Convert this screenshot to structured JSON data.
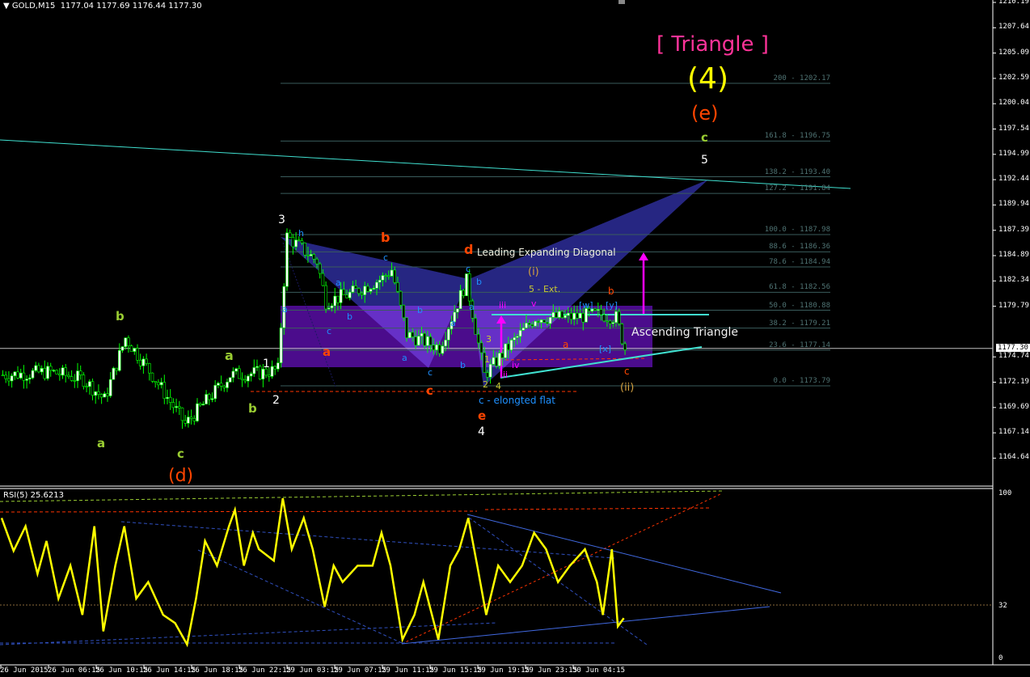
{
  "header": {
    "symbol": "GOLD,M15",
    "ohlc": "1177.04 1177.69 1176.44 1177.30"
  },
  "rsi_header": {
    "label": "RSI(5) 25.6213"
  },
  "colors": {
    "candle": "#00ff00",
    "rsi": "#ffff00",
    "fib": "#3a5c5c",
    "trend": "#40e0d0",
    "rect": "#4b0c8c",
    "harmonic": "#2a2a90",
    "arrow": "#ff00ff"
  },
  "chart_data": [
    {
      "type": "candlestick",
      "title": "GOLD,M15",
      "x_tick_labels": [
        "26 Jun 2015",
        "26 Jun 06:15",
        "26 Jun 10:15",
        "26 Jun 14:15",
        "26 Jun 18:15",
        "26 Jun 22:15",
        "29 Jun 03:15",
        "29 Jun 07:15",
        "29 Jun 11:15",
        "29 Jun 15:15",
        "29 Jun 19:15",
        "29 Jun 23:15",
        "30 Jun 04:15"
      ],
      "y_tick_labels": [
        "1210.19",
        "1207.64",
        "1205.09",
        "1202.59",
        "1200.04",
        "1197.54",
        "1194.99",
        "1192.44",
        "1189.94",
        "1187.39",
        "1184.89",
        "1182.34",
        "1179.79",
        "1174.74",
        "1172.19",
        "1169.69",
        "1167.14",
        "1164.64"
      ],
      "current_price": "1177.30",
      "ylim": [
        1164.64,
        1210.19
      ],
      "close_path": {
        "bars": [
          0,
          16,
          27,
          34,
          41,
          50,
          61,
          76,
          86,
          92,
          95,
          105,
          108,
          116,
          127,
          130,
          135,
          146,
          155,
          161,
          168,
          178,
          189,
          200,
          205,
          208
        ],
        "close": [
          1174.8,
          1175.1,
          1174.4,
          1172.5,
          1178.3,
          1174.8,
          1170.2,
          1174.8,
          1175.0,
          1175.3,
          1187.8,
          1185.5,
          1181.7,
          1182.4,
          1183.9,
          1184.7,
          1178.6,
          1177.4,
          1183.6,
          1174.8,
          1177.1,
          1180.2,
          1180.2,
          1180.5,
          1180.2,
          1177.3
        ]
      },
      "fib_levels": [
        {
          "label": "200 - 1202.17",
          "price": 1202.17
        },
        {
          "label": "161.8 - 1196.75",
          "price": 1196.75
        },
        {
          "label": "138.2 - 1193.40",
          "price": 1193.4
        },
        {
          "label": "127.2 - 1191.84",
          "price": 1191.84
        },
        {
          "label": "100.0 - 1187.98",
          "price": 1187.98
        },
        {
          "label": "88.6 - 1186.36",
          "price": 1186.36
        },
        {
          "label": "78.6 - 1184.94",
          "price": 1184.94
        },
        {
          "label": "61.8 - 1182.56",
          "price": 1182.56
        },
        {
          "label": "50.0 - 1180.88",
          "price": 1180.88
        },
        {
          "label": "38.2 - 1179.21",
          "price": 1179.21
        },
        {
          "label": "23.6  - 1177.14",
          "price": 1177.14
        },
        {
          "label": "0.0 - 1173.79",
          "price": 1173.79
        }
      ],
      "annotations": [
        {
          "text": "[ Triangle ]",
          "color": "#ff3399"
        },
        {
          "text": "(4)",
          "color": "#ffff00"
        },
        {
          "text": "(e)",
          "color": "#ff4500"
        },
        {
          "text": "c",
          "color": "#9acd32"
        },
        {
          "text": "5",
          "color": "#ffffff"
        },
        {
          "text": "3",
          "color": "#ffffff"
        },
        {
          "text": "b",
          "color": "#9acd32"
        },
        {
          "text": "a",
          "color": "#9acd32"
        },
        {
          "text": "c",
          "color": "#9acd32"
        },
        {
          "text": "(d)",
          "color": "#ff4500"
        },
        {
          "text": "a",
          "color": "#9acd32"
        },
        {
          "text": "1",
          "color": "#ffffff"
        },
        {
          "text": "2",
          "color": "#ffffff"
        },
        {
          "text": "b",
          "color": "#9acd32"
        },
        {
          "text": "h",
          "color": "#1e90ff"
        },
        {
          "text": "b",
          "color": "#ff4500"
        },
        {
          "text": "d",
          "color": "#ff4500"
        },
        {
          "text": "Leading Expanding Diagonal",
          "color": "#f0f0e0"
        },
        {
          "text": "c",
          "color": "#1e90ff"
        },
        {
          "text": "c",
          "color": "#1e90ff"
        },
        {
          "text": "(i)",
          "color": "#d2a040"
        },
        {
          "text": "5 - Ext.",
          "color": "#c8c832"
        },
        {
          "text": "b",
          "color": "#ff4500"
        },
        {
          "text": "a",
          "color": "#1e90ff"
        },
        {
          "text": "a",
          "color": "#1e90ff"
        },
        {
          "text": "b",
          "color": "#1e90ff"
        },
        {
          "text": "c",
          "color": "#1e90ff"
        },
        {
          "text": "b",
          "color": "#1e90ff"
        },
        {
          "text": "a",
          "color": "#1e90ff"
        },
        {
          "text": "b",
          "color": "#1e90ff"
        },
        {
          "text": "a",
          "color": "#1e90ff"
        },
        {
          "text": "iii",
          "color": "#ff00ff"
        },
        {
          "text": "v",
          "color": "#ff00ff"
        },
        {
          "text": "[w]",
          "color": "#1e90ff"
        },
        {
          "text": "[y]",
          "color": "#1e90ff"
        },
        {
          "text": "Ascending Triangle",
          "color": "#f0f0f0"
        },
        {
          "text": "a",
          "color": "#ff4500"
        },
        {
          "text": "a",
          "color": "#1e90ff"
        },
        {
          "text": "c",
          "color": "#1e90ff"
        },
        {
          "text": "b",
          "color": "#1e90ff"
        },
        {
          "text": "3",
          "color": "#c8c832"
        },
        {
          "text": "a",
          "color": "#ff4500"
        },
        {
          "text": "[x]",
          "color": "#1e90ff"
        },
        {
          "text": "c",
          "color": "#ff4500"
        },
        {
          "text": "(ii)",
          "color": "#d2a040"
        },
        {
          "text": "c",
          "color": "#ff4500"
        },
        {
          "text": "2",
          "color": "#c8c832"
        },
        {
          "text": "4",
          "color": "#c8c832"
        },
        {
          "text": "c - elongted flat",
          "color": "#1e90ff"
        },
        {
          "text": "e",
          "color": "#ff4500"
        },
        {
          "text": "4",
          "color": "#ffffff"
        },
        {
          "text": "1",
          "color": "#c8c832"
        },
        {
          "text": "iv",
          "color": "#ff00ff"
        },
        {
          "text": "ii",
          "color": "#ff00ff"
        }
      ]
    },
    {
      "type": "line",
      "title": "RSI(5) 25.6213",
      "series": [
        {
          "name": "RSI(5)",
          "bars": [
            0,
            4,
            8,
            12,
            15,
            19,
            23,
            27,
            31,
            34,
            38,
            41,
            45,
            49,
            54,
            58,
            62,
            65,
            68,
            72,
            76,
            78,
            81,
            84,
            86,
            91,
            94,
            97,
            101,
            104,
            108,
            111,
            114,
            119,
            124,
            127,
            130,
            134,
            138,
            141,
            146,
            150,
            153,
            156,
            159,
            162,
            166,
            170,
            174,
            178,
            182,
            186,
            190,
            195,
            199,
            201,
            204,
            206,
            208
          ],
          "values": [
            85,
            65,
            80,
            51,
            71,
            36,
            56,
            26,
            80,
            16,
            56,
            80,
            36,
            46,
            26,
            21,
            8,
            36,
            71,
            56,
            80,
            90,
            56,
            76,
            66,
            59,
            97,
            66,
            85,
            66,
            31,
            56,
            46,
            56,
            56,
            76,
            56,
            11,
            26,
            46,
            11,
            56,
            66,
            85,
            56,
            26,
            56,
            46,
            56,
            76,
            66,
            46,
            56,
            66,
            46,
            26,
            66,
            19,
            24
          ]
        }
      ],
      "y_tick_labels": [
        "100",
        "32",
        "0"
      ],
      "ylim": [
        0,
        100
      ],
      "levels": [
        32
      ]
    }
  ]
}
